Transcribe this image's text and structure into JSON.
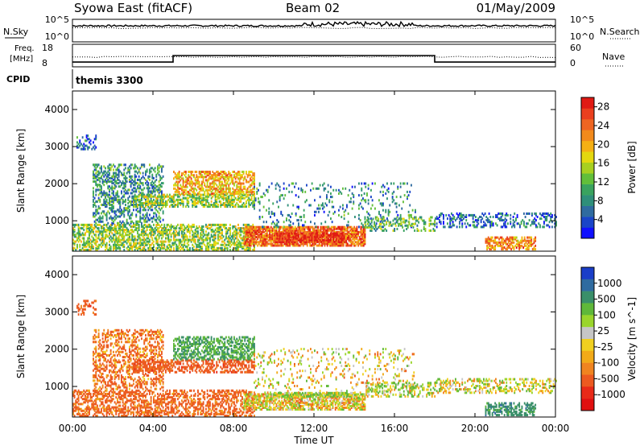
{
  "header": {
    "title": "Syowa East (fitACF)",
    "beam": "Beam 02",
    "date": "01/May/2009"
  },
  "nsky": {
    "label": "N.Sky",
    "right_label": "N.Search",
    "ticks": [
      "10^5",
      "10^0"
    ],
    "right_ticks": [
      "10^5",
      "10^0"
    ]
  },
  "freq": {
    "label_line1": "Freq.",
    "label_line2": "[MHz]",
    "ticks": [
      "18",
      "8"
    ],
    "right_label": "Nave",
    "right_ticks": [
      "60",
      "0"
    ],
    "ylim": [
      8,
      18
    ],
    "steps": [
      {
        "start_hour": 0,
        "end_hour": 5,
        "mhz": 10.1
      },
      {
        "start_hour": 5,
        "end_hour": 18,
        "mhz": 13.0
      },
      {
        "start_hour": 18,
        "end_hour": 24,
        "mhz": 10.1
      }
    ]
  },
  "cpid": {
    "label": "CPID",
    "value": "themis 3300"
  },
  "x_axis": {
    "label": "Time UT",
    "ticks": [
      "00:00",
      "04:00",
      "08:00",
      "12:00",
      "16:00",
      "20:00",
      "00:00"
    ],
    "range_hours": [
      0,
      24
    ]
  },
  "y_axis": {
    "label": "Slant Range [km]",
    "ticks": [
      "1000",
      "2000",
      "3000",
      "4000"
    ],
    "range_km": [
      180,
      4500
    ]
  },
  "power_colorbar": {
    "label": "Power [dB]",
    "ticks": [
      "4",
      "8",
      "12",
      "16",
      "20",
      "24",
      "28"
    ],
    "range": [
      0,
      30
    ],
    "colors": [
      "#1010ff",
      "#1a45c8",
      "#2f6ba0",
      "#2f8f7a",
      "#3aa35f",
      "#62bf3a",
      "#a8d020",
      "#e4d80f",
      "#f5b014",
      "#f28a1c",
      "#ee6522",
      "#ea3f1e",
      "#e01a14"
    ]
  },
  "velocity_colorbar": {
    "label": "Velocity [m s^-1]",
    "ticks": [
      "1000",
      "500",
      "100",
      "25",
      "-25",
      "-100",
      "-500",
      "-1000"
    ],
    "colors": [
      "#1a3ec8",
      "#2f6ba0",
      "#3a8f6a",
      "#5fb83a",
      "#9ad52c",
      "#c6c6c6",
      "#f0d020",
      "#f2aa18",
      "#f08420",
      "#ec5a20",
      "#e82a18",
      "#e01010"
    ]
  },
  "chart_data": [
    {
      "type": "heatmap",
      "panel": "power",
      "xlabel": "Time UT",
      "ylabel": "Slant Range [km]",
      "xlim_hours": [
        0,
        24
      ],
      "ylim_km": [
        180,
        4500
      ],
      "colorbar_label": "Power [dB]",
      "regions": [
        {
          "t0": 0.0,
          "t1": 9.0,
          "r0": 180,
          "r1": 900,
          "v": 14,
          "density": 0.55
        },
        {
          "t0": 0.2,
          "t1": 1.2,
          "r0": 2900,
          "r1": 3300,
          "v": 6,
          "density": 0.35
        },
        {
          "t0": 1.0,
          "t1": 4.5,
          "r0": 900,
          "r1": 2500,
          "v": 9,
          "density": 0.4
        },
        {
          "t0": 3.0,
          "t1": 9.0,
          "r0": 1350,
          "r1": 1700,
          "v": 14,
          "density": 0.6
        },
        {
          "t0": 5.0,
          "t1": 9.0,
          "r0": 1700,
          "r1": 2300,
          "v": 20,
          "density": 0.55
        },
        {
          "t0": 8.5,
          "t1": 14.5,
          "r0": 300,
          "r1": 800,
          "v": 24,
          "density": 0.8
        },
        {
          "t0": 10.0,
          "t1": 13.5,
          "r0": 400,
          "r1": 650,
          "v": 28,
          "density": 0.8
        },
        {
          "t0": 9.0,
          "t1": 17.0,
          "r0": 800,
          "r1": 2000,
          "v": 8,
          "density": 0.12
        },
        {
          "t0": 14.5,
          "t1": 18.0,
          "r0": 700,
          "r1": 1100,
          "v": 12,
          "density": 0.35
        },
        {
          "t0": 18.0,
          "t1": 24.0,
          "r0": 800,
          "r1": 1200,
          "v": 6,
          "density": 0.35
        },
        {
          "t0": 20.5,
          "t1": 23.0,
          "r0": 200,
          "r1": 550,
          "v": 22,
          "density": 0.6
        }
      ]
    },
    {
      "type": "heatmap",
      "panel": "velocity",
      "xlabel": "Time UT",
      "ylabel": "Slant Range [km]",
      "xlim_hours": [
        0,
        24
      ],
      "ylim_km": [
        180,
        4500
      ],
      "colorbar_label": "Velocity [m s^-1]",
      "regions": [
        {
          "t0": 0.0,
          "t1": 9.0,
          "r0": 180,
          "r1": 900,
          "v": -150,
          "density": 0.5
        },
        {
          "t0": 0.2,
          "t1": 1.2,
          "r0": 2900,
          "r1": 3300,
          "v": -200,
          "density": 0.35
        },
        {
          "t0": 1.0,
          "t1": 4.5,
          "r0": 900,
          "r1": 2500,
          "v": -120,
          "density": 0.4
        },
        {
          "t0": 3.0,
          "t1": 9.0,
          "r0": 1350,
          "r1": 1700,
          "v": -200,
          "density": 0.55
        },
        {
          "t0": 5.0,
          "t1": 9.0,
          "r0": 1700,
          "r1": 2300,
          "v": 300,
          "density": 0.55
        },
        {
          "t0": 8.5,
          "t1": 14.5,
          "r0": 350,
          "r1": 800,
          "v": 0,
          "density": 0.7
        },
        {
          "t0": 10.0,
          "t1": 14.0,
          "r0": 700,
          "r1": 800,
          "v": 80,
          "density": 0.7
        },
        {
          "t0": 9.0,
          "t1": 17.0,
          "r0": 800,
          "r1": 2000,
          "v": 0,
          "density": 0.12
        },
        {
          "t0": 14.5,
          "t1": 18.0,
          "r0": 700,
          "r1": 1100,
          "v": 60,
          "density": 0.35
        },
        {
          "t0": 18.0,
          "t1": 24.0,
          "r0": 800,
          "r1": 1200,
          "v": 20,
          "density": 0.35
        },
        {
          "t0": 20.5,
          "t1": 23.0,
          "r0": 200,
          "r1": 550,
          "v": 400,
          "density": 0.55
        }
      ]
    }
  ]
}
